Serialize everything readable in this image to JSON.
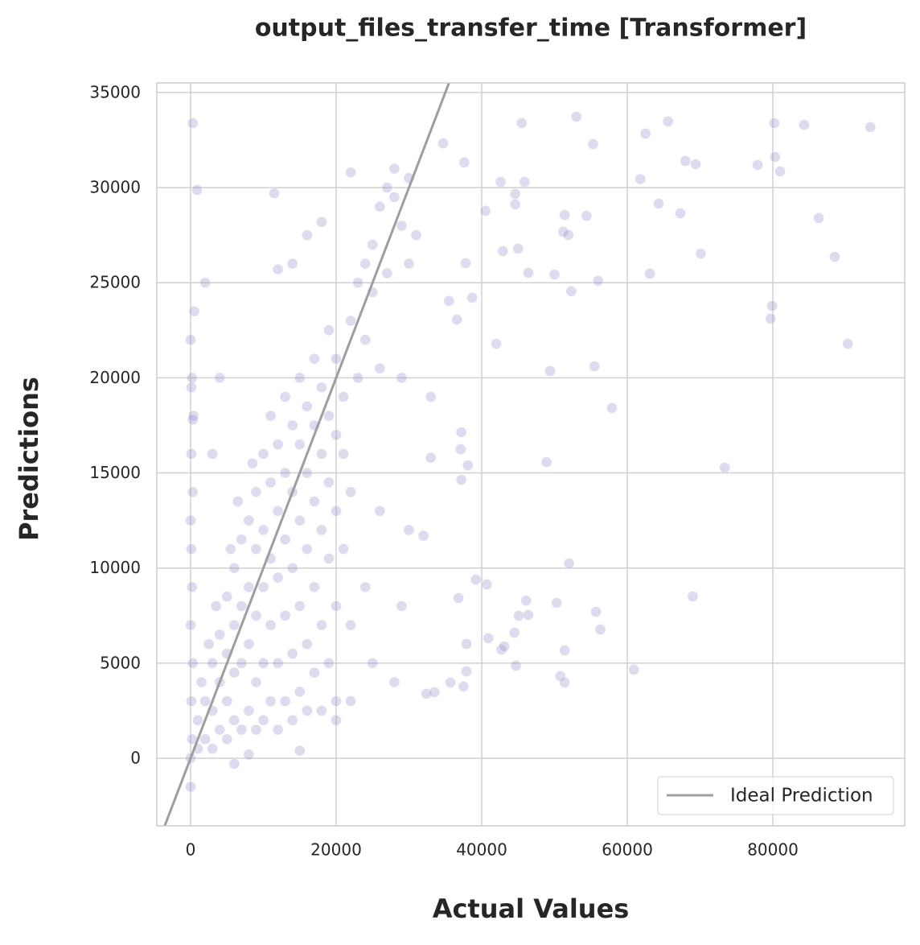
{
  "chart_data": {
    "type": "scatter",
    "title": "output_files_transfer_time [Transformer]",
    "xlabel": "Actual Values",
    "ylabel": "Predictions",
    "xlim": [
      -4640,
      98120
    ],
    "ylim": [
      -3555,
      35505
    ],
    "xticks": [
      0,
      20000,
      40000,
      60000,
      80000
    ],
    "yticks": [
      0,
      5000,
      10000,
      15000,
      20000,
      25000,
      30000,
      35000
    ],
    "grid": true,
    "legend_position": "lower right",
    "ideal_line": {
      "name": "Ideal Prediction",
      "color": "#9e9e9e"
    },
    "points": {
      "color": "#9587c7",
      "opacity": 0.3,
      "x": [
        300,
        900,
        34700,
        37600,
        45500,
        53000,
        55300,
        62500,
        65600,
        80200,
        84300,
        93400,
        68000,
        69400,
        77900,
        80300,
        81000,
        61800,
        42600,
        45900,
        40500,
        44600,
        44600,
        51400,
        54400,
        64300,
        67300,
        86300,
        51200,
        51900,
        42900,
        45000,
        70100,
        88500,
        37800,
        46400,
        50000,
        56000,
        63100,
        52300,
        38700,
        35500,
        36600,
        79700,
        79900,
        42000,
        90300,
        49400,
        55500,
        57900,
        37200,
        37100,
        38100,
        48900,
        73400,
        37200,
        52000,
        39200,
        40700,
        36800,
        69000,
        46100,
        50300,
        45100,
        46400,
        55700,
        56300,
        44500,
        40900,
        37900,
        42700,
        43100,
        51400,
        60900,
        44700,
        37900,
        50800,
        51400,
        37500,
        35700,
        32400,
        33500,
        0,
        0,
        200,
        100,
        300,
        0,
        200,
        100,
        0,
        300,
        100,
        400,
        200,
        0,
        500,
        100,
        300,
        1000,
        1000,
        1500,
        2000,
        2000,
        2500,
        3000,
        3000,
        3000,
        3500,
        4000,
        4000,
        4000,
        5000,
        5000,
        5000,
        5000,
        5500,
        6000,
        6000,
        6000,
        6000,
        6500,
        7000,
        7000,
        7000,
        7000,
        8000,
        8000,
        8000,
        8000,
        8500,
        9000,
        9000,
        9000,
        9000,
        9000,
        10000,
        10000,
        10000,
        10000,
        10000,
        11000,
        11000,
        11000,
        11000,
        11000,
        12000,
        12000,
        12000,
        12000,
        12000,
        13000,
        13000,
        13000,
        13000,
        13000,
        14000,
        14000,
        14000,
        14000,
        14000,
        15000,
        15000,
        15000,
        15000,
        15000,
        16000,
        16000,
        16000,
        16000,
        16000,
        17000,
        17000,
        17000,
        17000,
        17000,
        18000,
        18000,
        18000,
        18000,
        18000,
        19000,
        19000,
        19000,
        19000,
        19000,
        20000,
        20000,
        20000,
        20000,
        20000,
        21000,
        21000,
        21000,
        22000,
        22000,
        22000,
        23000,
        23000,
        24000,
        24000,
        25000,
        25000,
        26000,
        26000,
        27000,
        27000,
        28000,
        28000,
        29000,
        30000,
        30000,
        31000,
        24000,
        25000,
        26000,
        28000,
        29000,
        33000,
        29000,
        22000,
        4000,
        2000,
        3000,
        6000,
        8000,
        15000,
        20000,
        30000,
        32000,
        33000,
        12000,
        14000,
        16000,
        18000,
        22000,
        11500
      ],
      "y": [
        33390,
        29880,
        32330,
        31320,
        33390,
        33730,
        32290,
        32840,
        33480,
        33390,
        33300,
        33180,
        31400,
        31230,
        31190,
        31610,
        30850,
        30450,
        30300,
        30300,
        28780,
        29670,
        29120,
        28560,
        28520,
        29160,
        28650,
        28400,
        27680,
        27510,
        26660,
        26790,
        26530,
        26360,
        26030,
        25520,
        25430,
        25100,
        25480,
        24550,
        24210,
        24040,
        23060,
        23110,
        23780,
        21790,
        21790,
        20360,
        20610,
        18410,
        17140,
        16250,
        15400,
        15570,
        15280,
        14640,
        10240,
        9390,
        9140,
        8420,
        8510,
        8290,
        8170,
        7490,
        7530,
        7700,
        6770,
        6600,
        6310,
        6010,
        5710,
        5880,
        5670,
        4660,
        4870,
        4570,
        4320,
        3980,
        3770,
        3980,
        3390,
        3470,
        -1500,
        0,
        1000,
        3000,
        5000,
        7000,
        9000,
        11000,
        12500,
        14000,
        16000,
        18000,
        20000,
        22000,
        23500,
        19500,
        17800,
        500,
        2000,
        4000,
        1000,
        3000,
        6000,
        500,
        2500,
        5000,
        8000,
        1500,
        4000,
        6500,
        1000,
        3000,
        5500,
        8500,
        11000,
        2000,
        4500,
        7000,
        10000,
        13500,
        1500,
        5000,
        8000,
        11500,
        2500,
        6000,
        9000,
        12500,
        15500,
        1500,
        4000,
        7500,
        11000,
        14000,
        2000,
        5000,
        9000,
        12000,
        16000,
        3000,
        7000,
        10500,
        14500,
        18000,
        1500,
        5000,
        9500,
        13000,
        16500,
        3000,
        7500,
        11500,
        15000,
        19000,
        2000,
        5500,
        10000,
        14000,
        17500,
        3500,
        8000,
        12500,
        16500,
        20000,
        2500,
        6000,
        11000,
        15000,
        18500,
        4500,
        9000,
        13500,
        17500,
        21000,
        2500,
        7000,
        12000,
        16000,
        19500,
        5000,
        10500,
        14500,
        18000,
        22500,
        3000,
        8000,
        13000,
        17000,
        21000,
        11000,
        16000,
        19000,
        23000,
        7000,
        14000,
        25000,
        20000,
        26000,
        22000,
        27000,
        24500,
        29000,
        20500,
        30000,
        25500,
        29500,
        31000,
        28000,
        30500,
        26000,
        27500,
        9000,
        5000,
        13000,
        4000,
        8000,
        19000,
        20000,
        3000,
        20000,
        25000,
        16000,
        -300,
        200,
        400,
        2000,
        12000,
        11700,
        15800,
        25700,
        26000,
        27500,
        28200,
        30800,
        29700
      ]
    }
  }
}
